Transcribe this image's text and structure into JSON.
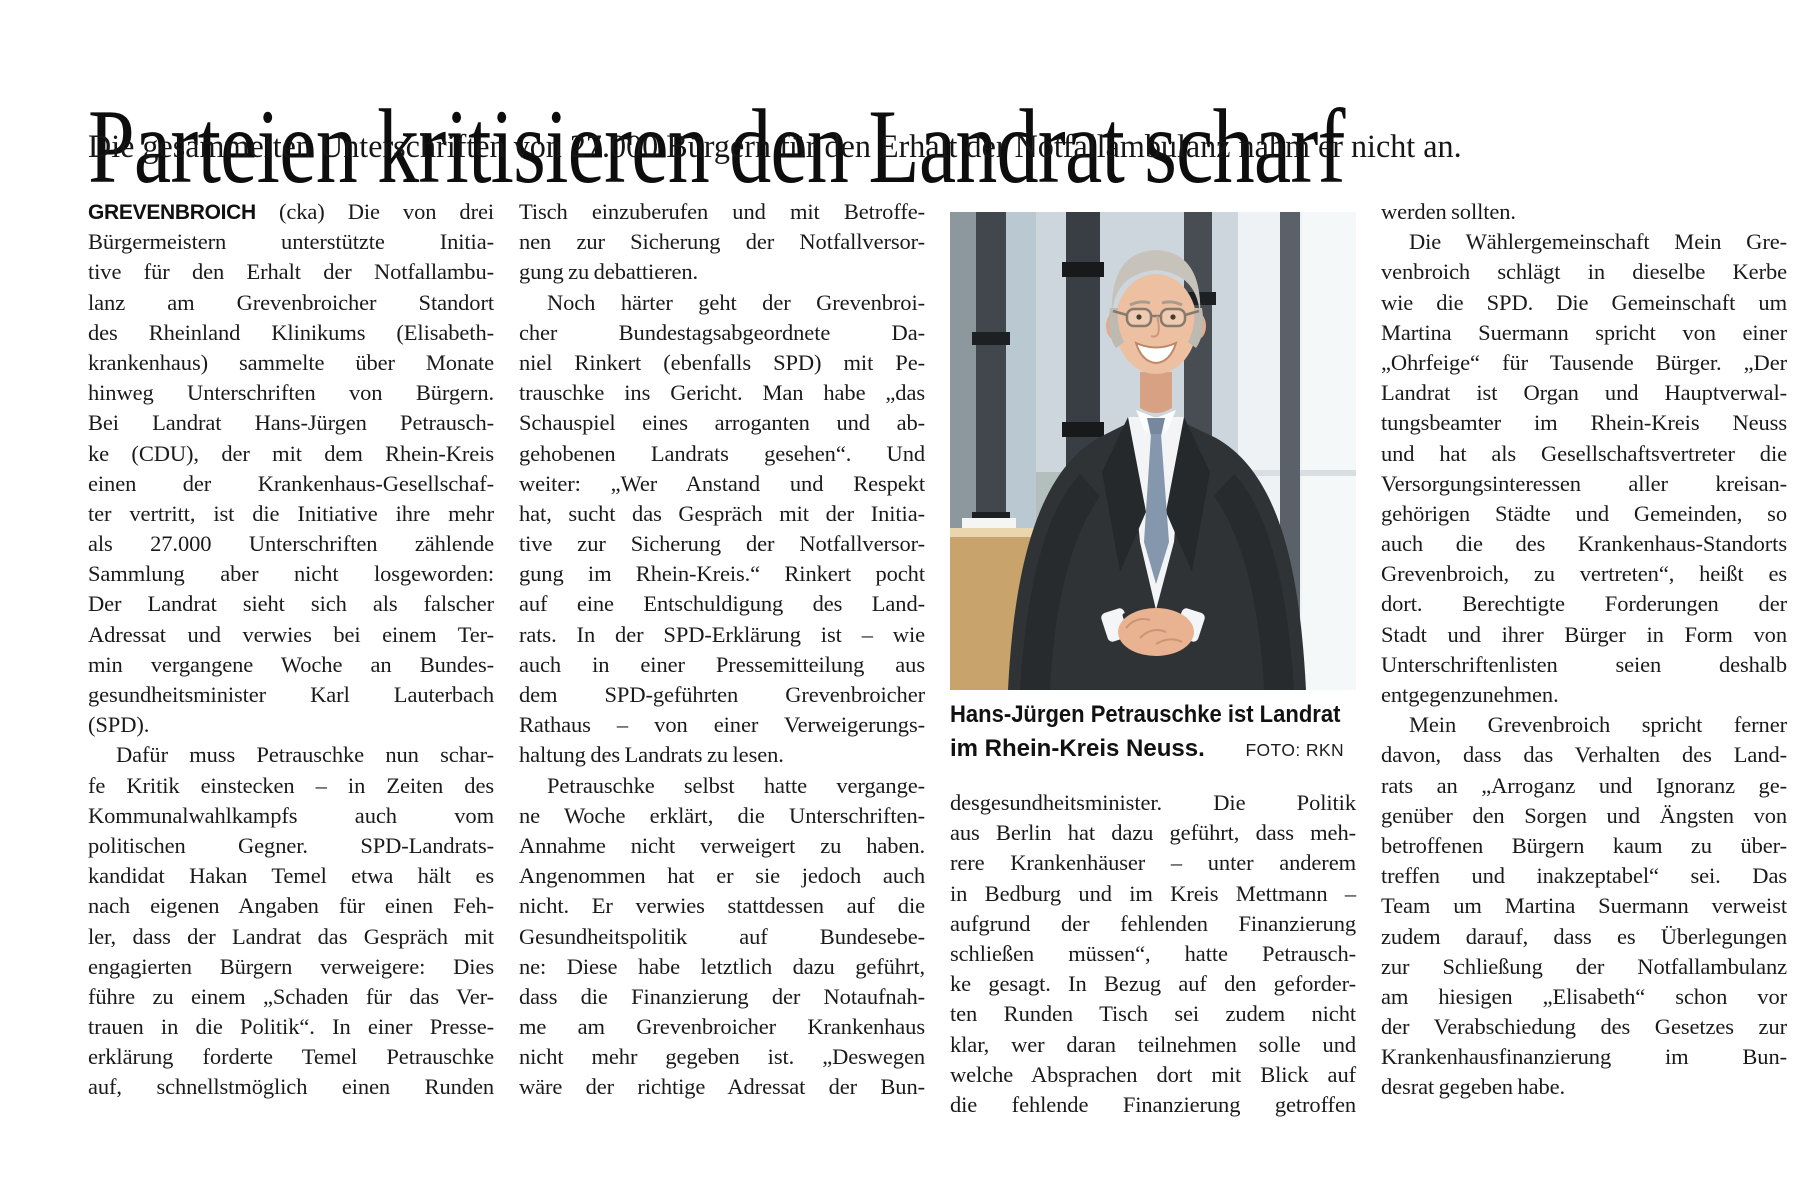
{
  "page": {
    "background": "#ffffff",
    "text_color": "#1a1a1a"
  },
  "headline": "Parteien kritisieren den Landrat scharf",
  "subheadline": "Die gesammelten Unterschriften von 27.000 Bürgern für den Erhalt der Notfallambulanz nahm er nicht an.",
  "photo": {
    "caption_line1": "Hans-Jürgen Petrauschke ist Landrat",
    "caption_line2": "im Rhein-Kreis Neuss.",
    "credit": "FOTO: RKN",
    "description": "Hans-Jürgen Petrauschke im dunklen Anzug mit Krawatte, lächelnd mit gefalteten Händen vor einer Glasfassade"
  },
  "article": {
    "columns": [
      {
        "lines": [
          {
            "lead": "GREVENBROICH",
            "t": " (cka) Die von drei"
          },
          {
            "t": "Bürgermeistern unterstützte Initia-"
          },
          {
            "t": "tive für den Erhalt der Notfallambu-"
          },
          {
            "t": "lanz am Grevenbroicher Standort"
          },
          {
            "t": "des Rheinland Klinikums (Elisabeth-"
          },
          {
            "t": "krankenhaus) sammelte über Monate"
          },
          {
            "t": "hinweg Unterschriften von Bürgern."
          },
          {
            "t": "Bei Landrat Hans-Jürgen Petrausch-"
          },
          {
            "t": "ke (CDU), der mit dem Rhein-Kreis"
          },
          {
            "t": "einen der Krankenhaus-Gesellschaf-"
          },
          {
            "t": "ter vertritt, ist die Initiative ihre mehr"
          },
          {
            "t": "als 27.000 Unterschriften zählende"
          },
          {
            "t": "Sammlung aber nicht losgeworden:"
          },
          {
            "t": "Der Landrat sieht sich als falscher"
          },
          {
            "t": "Adressat und verwies bei einem Ter-"
          },
          {
            "t": "min vergangene Woche an Bundes-"
          },
          {
            "t": "gesundheitsminister Karl Lauterbach"
          },
          {
            "t": "(SPD).",
            "end": true
          },
          {
            "t": "Dafür muss Petrauschke nun schar-",
            "indent": true
          },
          {
            "t": "fe Kritik einstecken – in Zeiten des"
          },
          {
            "t": "Kommunalwahlkampfs auch vom"
          },
          {
            "t": "politischen Gegner. SPD-Landrats-"
          },
          {
            "t": "kandidat Hakan Temel etwa hält es"
          },
          {
            "t": "nach eigenen Angaben für einen Feh-"
          },
          {
            "t": "ler, dass der Landrat das Gespräch mit"
          },
          {
            "t": "engagierten Bürgern verweigere: Dies"
          },
          {
            "t": "führe zu einem „Schaden für das Ver-"
          },
          {
            "t": "trauen in die Politik“. In einer Presse-"
          },
          {
            "t": "erklärung forderte Temel Petrauschke"
          },
          {
            "t": "auf, schnellstmöglich einen Runden"
          }
        ]
      },
      {
        "lines": [
          {
            "t": "Tisch einzuberufen und mit Betroffe-"
          },
          {
            "t": "nen zur Sicherung der Notfallversor-"
          },
          {
            "t": "gung zu debattieren.",
            "end": true
          },
          {
            "t": "Noch härter geht der Grevenbroi-",
            "indent": true
          },
          {
            "t": "cher Bundestagsabgeordnete Da-"
          },
          {
            "t": "niel Rinkert (ebenfalls SPD) mit Pe-"
          },
          {
            "t": "trauschke ins Gericht. Man habe „das"
          },
          {
            "t": "Schauspiel eines arroganten und ab-"
          },
          {
            "t": "gehobenen Landrats gesehen“. Und"
          },
          {
            "t": "weiter: „Wer Anstand und Respekt"
          },
          {
            "t": "hat, sucht das Gespräch mit der Initia-"
          },
          {
            "t": "tive zur Sicherung der Notfallversor-"
          },
          {
            "t": "gung im Rhein-Kreis.“ Rinkert pocht"
          },
          {
            "t": "auf eine Entschuldigung des Land-"
          },
          {
            "t": "rats. In der SPD-Erklärung ist – wie"
          },
          {
            "t": "auch in einer Pressemitteilung aus"
          },
          {
            "t": "dem SPD-geführten Grevenbroicher"
          },
          {
            "t": "Rathaus – von einer Verweigerungs-"
          },
          {
            "t": "haltung des Landrats zu lesen.",
            "end": true
          },
          {
            "t": "Petrauschke selbst hatte vergange-",
            "indent": true
          },
          {
            "t": "ne Woche erklärt, die Unterschriften-"
          },
          {
            "t": "Annahme nicht verweigert zu haben."
          },
          {
            "t": "Angenommen hat er sie jedoch auch"
          },
          {
            "t": "nicht. Er verwies stattdessen auf die"
          },
          {
            "t": "Gesundheitspolitik auf Bundesebe-"
          },
          {
            "t": "ne: Diese habe letztlich dazu geführt,"
          },
          {
            "t": "dass die Finanzierung der Notaufnah-"
          },
          {
            "t": "me am Grevenbroicher Krankenhaus"
          },
          {
            "t": "nicht mehr gegeben ist. „Deswegen"
          },
          {
            "t": "wäre der richtige Adressat der Bun-"
          }
        ]
      },
      {
        "lines": [
          {
            "t": "desgesundheitsminister. Die Politik"
          },
          {
            "t": "aus Berlin hat dazu geführt, dass meh-"
          },
          {
            "t": "rere Krankenhäuser – unter anderem"
          },
          {
            "t": "in Bedburg und im Kreis Mettmann –"
          },
          {
            "t": "aufgrund der fehlenden Finanzierung"
          },
          {
            "t": "schließen müssen“, hatte Petrausch-"
          },
          {
            "t": "ke gesagt. In Bezug auf den geforder-"
          },
          {
            "t": "ten Runden Tisch sei zudem nicht"
          },
          {
            "t": "klar, wer daran teilnehmen solle und"
          },
          {
            "t": "welche Absprachen dort mit Blick auf"
          },
          {
            "t": "die fehlende Finanzierung getroffen"
          }
        ]
      },
      {
        "lines": [
          {
            "t": "werden sollten.",
            "end": true
          },
          {
            "t": "Die Wählergemeinschaft Mein Gre-",
            "indent": true
          },
          {
            "t": "venbroich schlägt in dieselbe Kerbe"
          },
          {
            "t": "wie die SPD. Die Gemeinschaft um"
          },
          {
            "t": "Martina Suermann spricht von einer"
          },
          {
            "t": "„Ohrfeige“ für Tausende Bürger. „Der"
          },
          {
            "t": "Landrat ist Organ und Hauptverwal-"
          },
          {
            "t": "tungsbeamter im Rhein-Kreis Neuss"
          },
          {
            "t": "und hat als Gesellschaftsvertreter die"
          },
          {
            "t": "Versorgungsinteressen aller kreisan-"
          },
          {
            "t": "gehörigen Städte und Gemeinden, so"
          },
          {
            "t": "auch die des Krankenhaus-Standorts"
          },
          {
            "t": "Grevenbroich, zu vertreten“, heißt es"
          },
          {
            "t": "dort. Berechtigte Forderungen der"
          },
          {
            "t": "Stadt und ihrer Bürger in Form von"
          },
          {
            "t": "Unterschriftenlisten seien deshalb"
          },
          {
            "t": "entgegenzunehmen.",
            "end": true
          },
          {
            "t": "Mein Grevenbroich spricht ferner",
            "indent": true
          },
          {
            "t": "davon, dass das Verhalten des Land-"
          },
          {
            "t": "rats an „Arroganz und Ignoranz ge-"
          },
          {
            "t": "genüber den Sorgen und Ängsten von"
          },
          {
            "t": "betroffenen Bürgern kaum zu über-"
          },
          {
            "t": "treffen und inakzeptabel“ sei. Das"
          },
          {
            "t": "Team um Martina Suermann verweist"
          },
          {
            "t": "zudem darauf, dass es Überlegungen"
          },
          {
            "t": "zur Schließung der Notfallambulanz"
          },
          {
            "t": "am hiesigen „Elisabeth“ schon vor"
          },
          {
            "t": "der Verabschiedung des Gesetzes zur"
          },
          {
            "t": "Krankenhausfinanzierung im Bun-"
          },
          {
            "t": "desrat gegeben habe.",
            "end": true
          }
        ]
      }
    ]
  }
}
